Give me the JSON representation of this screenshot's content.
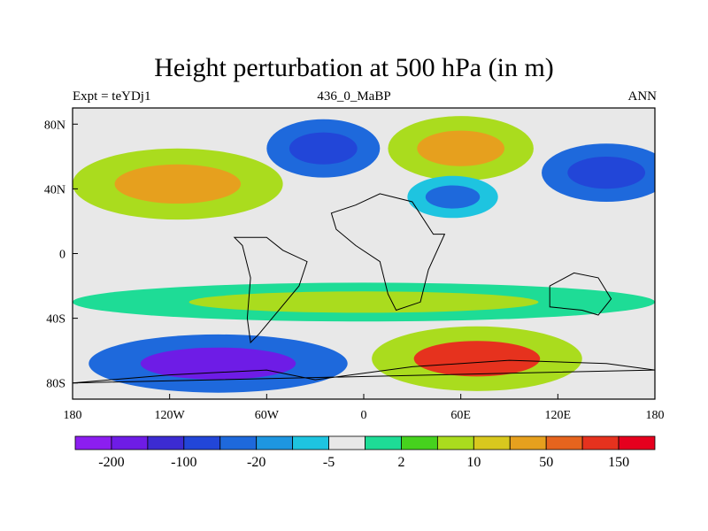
{
  "chart_data": {
    "type": "heatmap",
    "title": "Height perturbation at 500 hPa (in m)",
    "left_string": "Expt = teYDj1",
    "center_string": "436_0_MaBP",
    "right_string": "ANN",
    "x_axis": {
      "range": [
        -180,
        180
      ],
      "ticks": [
        -180,
        -120,
        -60,
        0,
        60,
        120,
        180
      ],
      "tick_labels": [
        "180",
        "120W",
        "60W",
        "0",
        "60E",
        "120E",
        "180"
      ]
    },
    "y_axis": {
      "range": [
        -90,
        90
      ],
      "ticks": [
        80,
        40,
        0,
        -40,
        -80
      ],
      "tick_labels": [
        "80N",
        "40N",
        "0",
        "40S",
        "80S"
      ]
    },
    "colorbar": {
      "levels": [
        "-200",
        "-100",
        "-20",
        "-5",
        "2",
        "10",
        "50",
        "150"
      ],
      "colors": [
        "#8c1ef0",
        "#6e1ce6",
        "#3c2bd2",
        "#2246d8",
        "#1e69dc",
        "#1e96e0",
        "#1ec4e0",
        "#e8e8e8",
        "#1edc96",
        "#46d21e",
        "#aadc1e",
        "#d8c81e",
        "#e6a01e",
        "#e6641e",
        "#e6321e",
        "#e6001e"
      ]
    },
    "field_regions": [
      {
        "name": "north-pacific-high",
        "lon": -115,
        "lat": 43,
        "rx": 65,
        "ry": 22,
        "level": 10,
        "core": 50
      },
      {
        "name": "north-atlantic-low",
        "lon": -25,
        "lat": 65,
        "rx": 35,
        "ry": 18,
        "level": -20,
        "core": -100
      },
      {
        "name": "europe-high",
        "lon": 60,
        "lat": 65,
        "rx": 45,
        "ry": 20,
        "level": 10,
        "core": 50
      },
      {
        "name": "asia-low",
        "lon": 55,
        "lat": 35,
        "rx": 28,
        "ry": 13,
        "level": -5,
        "core": -20
      },
      {
        "name": "west-pacific-low",
        "lon": 150,
        "lat": 50,
        "rx": 40,
        "ry": 18,
        "level": -20,
        "core": -100
      },
      {
        "name": "tropical-belt-south",
        "lon": 0,
        "lat": -30,
        "rx": 180,
        "ry": 12,
        "level": 2,
        "core": 10
      },
      {
        "name": "southern-ocean-low",
        "lon": -90,
        "lat": -68,
        "rx": 80,
        "ry": 18,
        "level": -20,
        "core": -200
      },
      {
        "name": "southern-indian-high",
        "lon": 70,
        "lat": -65,
        "rx": 65,
        "ry": 20,
        "level": 10,
        "core": 150
      }
    ],
    "units": "m"
  }
}
